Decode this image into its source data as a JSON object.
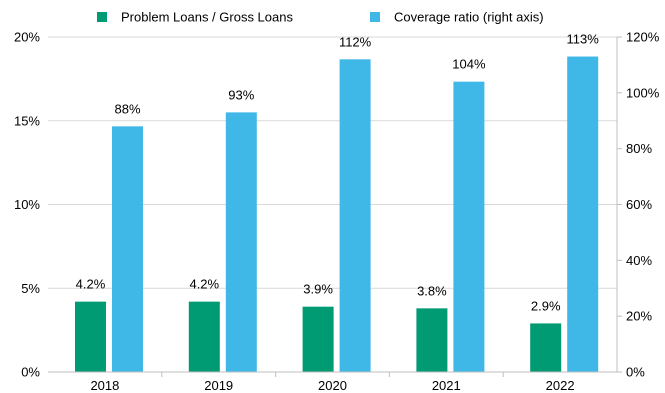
{
  "chart_data": {
    "type": "bar",
    "categories": [
      "2018",
      "2019",
      "2020",
      "2021",
      "2022"
    ],
    "series": [
      {
        "name": "Problem Loans / Gross Loans",
        "axis": "left",
        "color": "#009a73",
        "values": [
          4.2,
          4.2,
          3.9,
          3.8,
          2.9
        ],
        "labels": [
          "4.2%",
          "4.2%",
          "3.9%",
          "3.8%",
          "2.9%"
        ]
      },
      {
        "name": "Coverage ratio (right axis)",
        "axis": "right",
        "color": "#3fb8e8",
        "values": [
          88,
          93,
          112,
          104,
          113
        ],
        "labels": [
          "88%",
          "93%",
          "112%",
          "104%",
          "113%"
        ]
      }
    ],
    "y_left": {
      "ylim": [
        0,
        20
      ],
      "ticks": [
        0,
        5,
        10,
        15,
        20
      ],
      "tick_labels": [
        "0%",
        "5%",
        "10%",
        "15%",
        "20%"
      ]
    },
    "y_right": {
      "ylim": [
        0,
        120
      ],
      "ticks": [
        0,
        20,
        40,
        60,
        80,
        100,
        120
      ],
      "tick_labels": [
        "0%",
        "20%",
        "40%",
        "60%",
        "80%",
        "100%",
        "120%"
      ]
    },
    "grid": true,
    "legend": "top",
    "gridline_color": "#d9d9d9"
  }
}
